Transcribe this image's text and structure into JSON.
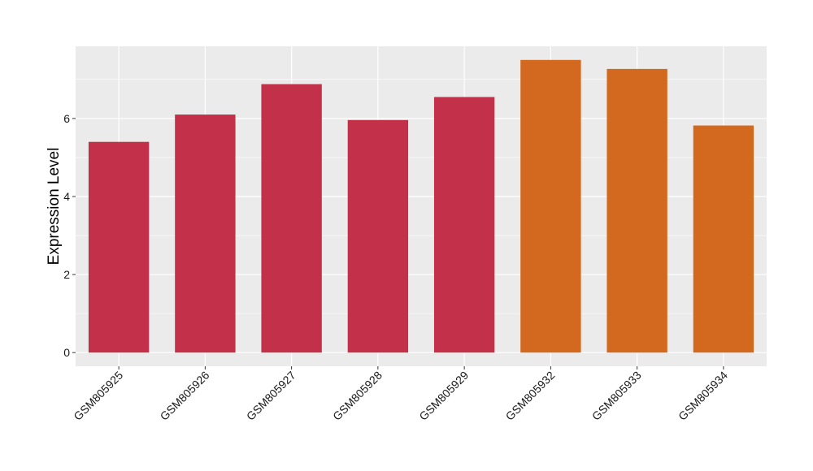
{
  "chart_data": {
    "type": "bar",
    "title": "",
    "xlabel": "",
    "ylabel": "Expression Level",
    "categories": [
      "GSM805925",
      "GSM805926",
      "GSM805927",
      "GSM805928",
      "GSM805929",
      "GSM805932",
      "GSM805933",
      "GSM805934"
    ],
    "values": [
      5.4,
      6.1,
      6.88,
      5.96,
      6.55,
      7.5,
      7.27,
      5.82
    ],
    "bar_colors": [
      "#c3304a",
      "#c3304a",
      "#c3304a",
      "#c3304a",
      "#c3304a",
      "#d2691e",
      "#d2691e",
      "#d2691e"
    ],
    "ylim": [
      -0.35,
      7.85
    ],
    "yticks": [
      0,
      2,
      4,
      6
    ],
    "grid": true,
    "legend": "none",
    "panel_background": "#ebebeb",
    "grid_color": "#ffffff"
  }
}
